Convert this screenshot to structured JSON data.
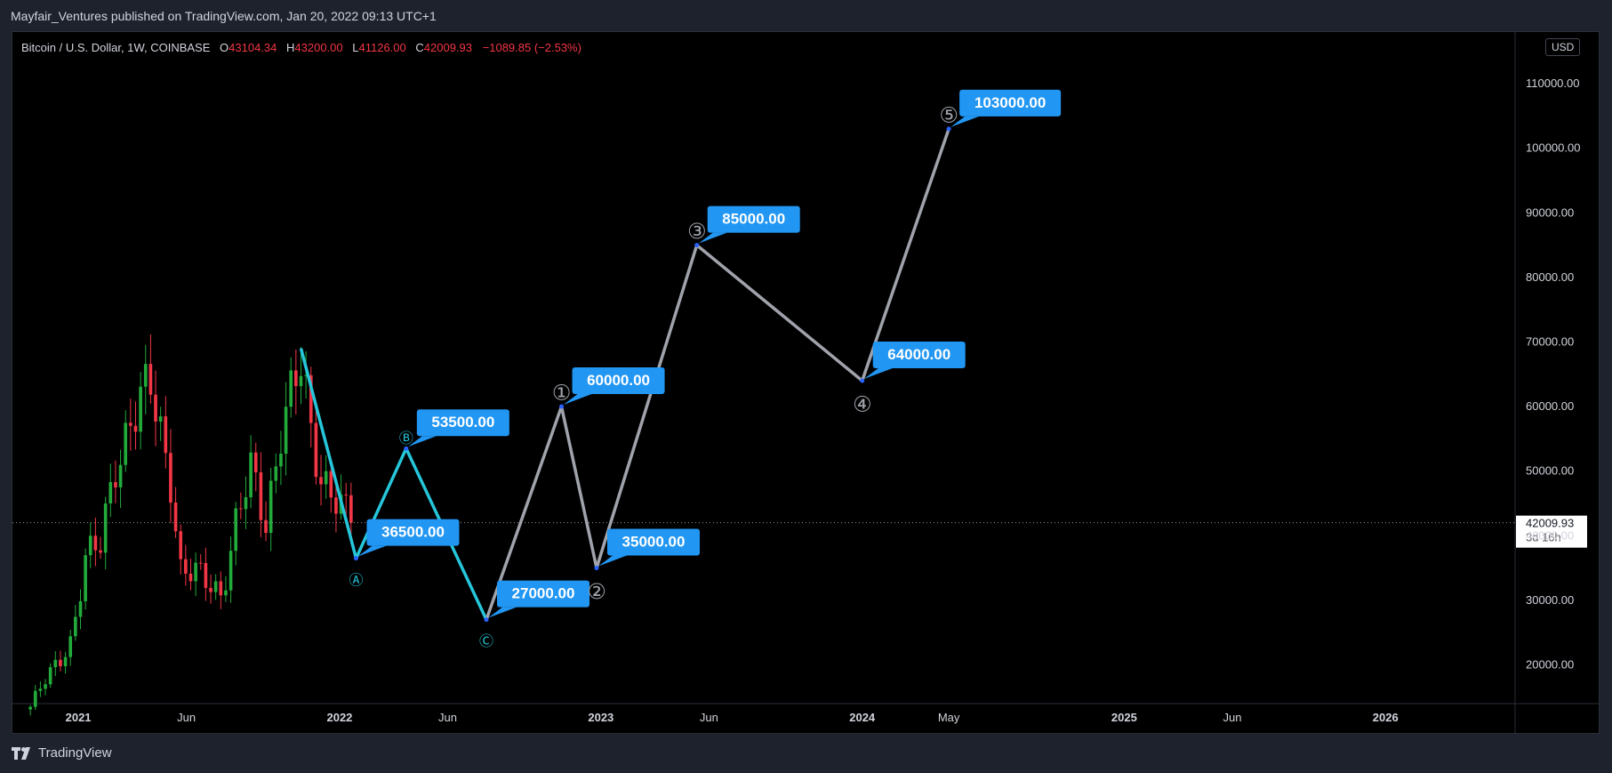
{
  "header": {
    "text": "Mayfair_Ventures published on TradingView.com, Jan 20, 2022 09:13 UTC+1"
  },
  "legend": {
    "symbol": "Bitcoin / U.S. Dollar, 1W, COINBASE",
    "open_key": "O",
    "open": "43104.34",
    "high_key": "H",
    "high": "43200.00",
    "low_key": "L",
    "low": "41126.00",
    "close_key": "C",
    "close": "42009.93",
    "change": "−1089.85 (−2.53%)"
  },
  "currency_button": "USD",
  "footer": {
    "brand": "TradingView"
  },
  "colors": {
    "up": "#22ab3b",
    "down": "#f23645",
    "abc_wave": "#26c6da",
    "impulse_wave": "#a0a3ab",
    "label_bg": "#2196f3",
    "axis_text": "#d1d4dc",
    "background": "#000000"
  },
  "chart_data": {
    "type": "candlestick",
    "y_unit": "USD",
    "ylim": [
      14000,
      118000
    ],
    "xlim": [
      "2020-10-01",
      "2026-07-01"
    ],
    "y_ticks": [
      "20000.00",
      "30000.00",
      "40000.00",
      "50000.00",
      "60000.00",
      "70000.00",
      "80000.00",
      "90000.00",
      "100000.00",
      "110000.00"
    ],
    "x_ticks": [
      {
        "label": "2021",
        "date": "2021-01-01",
        "bold": true
      },
      {
        "label": "Jun",
        "date": "2021-06-01",
        "bold": false
      },
      {
        "label": "2022",
        "date": "2022-01-01",
        "bold": true
      },
      {
        "label": "Jun",
        "date": "2022-06-01",
        "bold": false
      },
      {
        "label": "2023",
        "date": "2023-01-01",
        "bold": true
      },
      {
        "label": "Jun",
        "date": "2023-06-01",
        "bold": false
      },
      {
        "label": "2024",
        "date": "2024-01-01",
        "bold": true
      },
      {
        "label": "May",
        "date": "2024-05-01",
        "bold": false
      },
      {
        "label": "2025",
        "date": "2025-01-01",
        "bold": true
      },
      {
        "label": "Jun",
        "date": "2025-06-01",
        "bold": false
      },
      {
        "label": "2026",
        "date": "2026-01-01",
        "bold": true
      }
    ],
    "last_price": {
      "value": 42009.93,
      "label": "42009.93",
      "countdown": "3d 16h"
    },
    "price_path": [
      {
        "date": "2020-10-26",
        "close": 13500
      },
      {
        "date": "2020-11-23",
        "close": 18500
      },
      {
        "date": "2020-12-21",
        "close": 24000
      },
      {
        "date": "2021-01-11",
        "close": 36000
      },
      {
        "date": "2021-02-01",
        "close": 38000
      },
      {
        "date": "2021-02-22",
        "close": 52000
      },
      {
        "date": "2021-03-15",
        "close": 58000
      },
      {
        "date": "2021-04-12",
        "close": 62000
      },
      {
        "date": "2021-05-10",
        "close": 50000
      },
      {
        "date": "2021-05-24",
        "close": 35000
      },
      {
        "date": "2021-06-21",
        "close": 33000
      },
      {
        "date": "2021-07-19",
        "close": 31500
      },
      {
        "date": "2021-08-09",
        "close": 42000
      },
      {
        "date": "2021-08-30",
        "close": 49000
      },
      {
        "date": "2021-09-20",
        "close": 42000
      },
      {
        "date": "2021-10-11",
        "close": 58000
      },
      {
        "date": "2021-11-08",
        "close": 65000
      },
      {
        "date": "2021-11-22",
        "close": 55000
      },
      {
        "date": "2021-12-06",
        "close": 50000
      },
      {
        "date": "2021-12-27",
        "close": 47000
      },
      {
        "date": "2022-01-10",
        "close": 43000
      },
      {
        "date": "2022-01-17",
        "close": 42009.93
      }
    ],
    "abc_wave": {
      "points": [
        {
          "date": "2021-11-08",
          "value": 69000
        },
        {
          "date": "2022-01-24",
          "value": 36500,
          "label": "Ⓐ",
          "price": "36500.00"
        },
        {
          "date": "2022-04-04",
          "value": 53500,
          "label": "Ⓑ",
          "price": "53500.00"
        },
        {
          "date": "2022-07-25",
          "value": 27000,
          "label": "Ⓒ",
          "price": "27000.00"
        }
      ]
    },
    "impulse_wave": {
      "points": [
        {
          "date": "2022-07-25",
          "value": 27000
        },
        {
          "date": "2022-11-07",
          "value": 60000,
          "label": "①",
          "price": "60000.00"
        },
        {
          "date": "2022-12-26",
          "value": 35000,
          "label": "②",
          "price": "35000.00"
        },
        {
          "date": "2023-05-15",
          "value": 85000,
          "label": "③",
          "price": "85000.00"
        },
        {
          "date": "2024-01-01",
          "value": 64000,
          "label": "④",
          "price": "64000.00"
        },
        {
          "date": "2024-05-01",
          "value": 103000,
          "label": "⑤",
          "price": "103000.00"
        }
      ]
    }
  }
}
